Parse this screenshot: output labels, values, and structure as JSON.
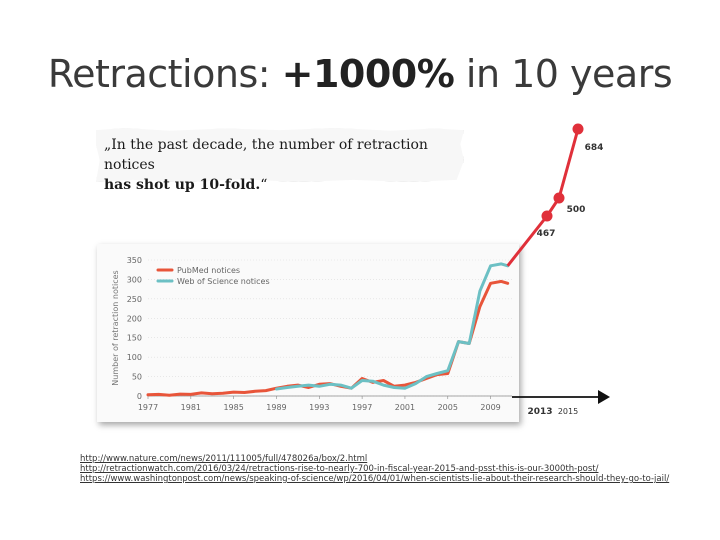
{
  "title": {
    "prefix": "Retractions: ",
    "highlight": "+1000%",
    "suffix": " in 10 years"
  },
  "quote": {
    "line1": "„In the past decade, the number of retraction notices",
    "line2_bold": "has shot up 10-fold.",
    "line2_tail": "“"
  },
  "references": [
    "http://www.nature.com/news/2011/111005/full/478026a/box/2.html",
    "http://retractionwatch.com/2016/03/24/retractions-rise-to-nearly-700-in-fiscal-year-2015-and-psst-this-is-our-3000th-post/",
    "https://www.washingtonpost.com/news/speaking-of-science/wp/2016/04/01/when-scientists-lie-about-their-research-should-they-go-to-jail/"
  ],
  "colors": {
    "pubmed": "#e8553a",
    "wos": "#6cc0c4",
    "extension": "#e0303a",
    "axis": "#555555"
  },
  "chart_data": {
    "type": "line",
    "ylabel": "Number of retraction notices",
    "ylim": [
      0,
      350
    ],
    "y_ticks": [
      "0",
      "50",
      "100",
      "150",
      "200",
      "250",
      "300",
      "350"
    ],
    "x_ticks": [
      "1977",
      "1981",
      "1985",
      "1989",
      "1993",
      "1997",
      "2001",
      "2005",
      "2009"
    ],
    "xlim": [
      1977,
      2011
    ],
    "legend": [
      "PubMed notices",
      "Web of Science notices"
    ],
    "series": [
      {
        "name": "PubMed notices",
        "x": [
          1977,
          1978,
          1979,
          1980,
          1981,
          1982,
          1983,
          1984,
          1985,
          1986,
          1987,
          1988,
          1989,
          1990,
          1991,
          1992,
          1993,
          1994,
          1995,
          1996,
          1997,
          1998,
          1999,
          2000,
          2001,
          2002,
          2003,
          2004,
          2005,
          2006,
          2007,
          2008,
          2009,
          2010,
          2010.6
        ],
        "values": [
          3,
          4,
          2,
          5,
          4,
          8,
          6,
          7,
          10,
          9,
          12,
          14,
          20,
          25,
          28,
          22,
          30,
          32,
          25,
          20,
          45,
          35,
          40,
          25,
          28,
          35,
          45,
          55,
          58,
          140,
          135,
          230,
          290,
          295,
          290
        ]
      },
      {
        "name": "Web of Science notices",
        "x": [
          1989,
          1990,
          1991,
          1992,
          1993,
          1994,
          1995,
          1996,
          1997,
          1998,
          1999,
          2000,
          2001,
          2002,
          2003,
          2004,
          2005,
          2006,
          2007,
          2008,
          2009,
          2010,
          2010.6
        ],
        "values": [
          18,
          22,
          25,
          28,
          25,
          30,
          28,
          20,
          40,
          38,
          28,
          22,
          20,
          32,
          50,
          58,
          65,
          140,
          135,
          270,
          335,
          340,
          335
        ]
      }
    ],
    "extension": {
      "axis_labels": [
        "2013",
        "2015"
      ],
      "points": [
        {
          "label": "467",
          "value": 467
        },
        {
          "label": "500",
          "value": 500
        },
        {
          "label": "684",
          "value": 684
        }
      ]
    }
  }
}
